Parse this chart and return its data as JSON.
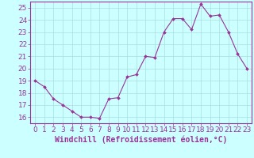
{
  "x": [
    0,
    1,
    2,
    3,
    4,
    5,
    6,
    7,
    8,
    9,
    10,
    11,
    12,
    13,
    14,
    15,
    16,
    17,
    18,
    19,
    20,
    21,
    22,
    23
  ],
  "y": [
    19,
    18.5,
    17.5,
    17,
    16.5,
    16,
    16,
    15.9,
    17.5,
    17.6,
    19.3,
    19.5,
    21,
    20.9,
    23,
    24.1,
    24.1,
    23.2,
    25.3,
    24.3,
    24.4,
    23,
    21.2,
    20
  ],
  "line_color": "#993399",
  "marker": "D",
  "marker_size": 2,
  "bg_color": "#ccffff",
  "grid_color": "#aadddd",
  "tick_color": "#993399",
  "label_color": "#993399",
  "xlabel": "Windchill (Refroidissement éolien,°C)",
  "ylim": [
    15.5,
    25.5
  ],
  "xlim": [
    -0.5,
    23.5
  ],
  "yticks": [
    16,
    17,
    18,
    19,
    20,
    21,
    22,
    23,
    24,
    25
  ],
  "xticks": [
    0,
    1,
    2,
    3,
    4,
    5,
    6,
    7,
    8,
    9,
    10,
    11,
    12,
    13,
    14,
    15,
    16,
    17,
    18,
    19,
    20,
    21,
    22,
    23
  ],
  "tick_fontsize": 6.5,
  "xlabel_fontsize": 7
}
